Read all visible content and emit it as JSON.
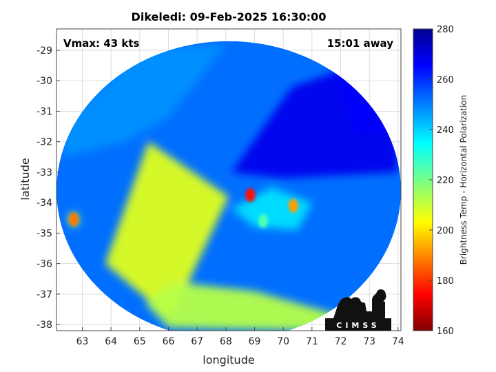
{
  "chart_data": {
    "type": "heatmap",
    "title": "Dikeledi: 09-Feb-2025 16:30:00",
    "xlabel": "longitude",
    "ylabel": "latitude",
    "xlim": [
      62.1,
      74.1
    ],
    "ylim": [
      -38.2,
      -28.3
    ],
    "xticks": [
      63,
      64,
      65,
      66,
      67,
      68,
      69,
      70,
      71,
      72,
      73,
      74
    ],
    "yticks": [
      -29,
      -30,
      -31,
      -32,
      -33,
      -34,
      -35,
      -36,
      -37,
      -38
    ],
    "xtick_labels": [
      "63",
      "64",
      "65",
      "66",
      "67",
      "68",
      "69",
      "70",
      "71",
      "72",
      "73",
      "74"
    ],
    "ytick_labels": [
      "-29",
      "-30",
      "-31",
      "-32",
      "-33",
      "-34",
      "-35",
      "-36",
      "-37",
      "-38"
    ],
    "grid": true,
    "annotations": {
      "top_left": "Vmax: 43 kts",
      "top_right": "15:01 away"
    },
    "colorbar": {
      "label": "Brightness Temp - Horizontal Polarization",
      "range": [
        160,
        280
      ],
      "ticks": [
        160,
        180,
        200,
        220,
        240,
        260,
        280
      ],
      "tick_labels": [
        "160",
        "180",
        "200",
        "220",
        "240",
        "260",
        "280"
      ],
      "colormap": "jet"
    },
    "swath_center": [
      68.1,
      -33.6
    ],
    "swath_radius_deg_lon": 6.0,
    "swath_radius_deg_lat": 4.9,
    "regions": [
      {
        "name": "background",
        "polygon": [],
        "value": 252
      },
      {
        "name": "northwest-blue",
        "polygon": [
          [
            62.3,
            -31.5
          ],
          [
            65,
            -29
          ],
          [
            68,
            -28.8
          ],
          [
            66,
            -31.2
          ],
          [
            64.5,
            -32
          ],
          [
            62.3,
            -32.5
          ]
        ],
        "value": 248
      },
      {
        "name": "warm-swath-gap",
        "polygon": [
          [
            63.8,
            -36
          ],
          [
            65.3,
            -32
          ],
          [
            68.1,
            -33.8
          ],
          [
            66.2,
            -37.6
          ],
          [
            65.8,
            -37.6
          ]
        ],
        "value": 207
      },
      {
        "name": "south-warm-band",
        "polygon": [
          [
            65.2,
            -37.3
          ],
          [
            66.2,
            -36.6
          ],
          [
            69,
            -36.9
          ],
          [
            72,
            -37.7
          ],
          [
            71,
            -38.2
          ],
          [
            66,
            -38.1
          ]
        ],
        "value": 212
      },
      {
        "name": "east-cold-swath",
        "polygon": [
          [
            68.2,
            -33
          ],
          [
            70.3,
            -30.2
          ],
          [
            72.5,
            -29.5
          ],
          [
            74,
            -32
          ],
          [
            74,
            -33
          ],
          [
            70,
            -33.2
          ]
        ],
        "value": 268
      },
      {
        "name": "northeast-deep-cold",
        "polygon": [
          [
            71.8,
            -29.5
          ],
          [
            73,
            -29.6
          ],
          [
            74,
            -31.6
          ],
          [
            72.5,
            -31.8
          ]
        ],
        "value": 266
      },
      {
        "name": "storm-arc",
        "polygon": [
          [
            68.2,
            -34.2
          ],
          [
            69.6,
            -33.5
          ],
          [
            71,
            -34
          ],
          [
            70.5,
            -34.9
          ],
          [
            69,
            -34.8
          ]
        ],
        "value": 238
      },
      {
        "name": "far-west-spot",
        "polygon": [
          [
            62.5,
            -34.4
          ],
          [
            62.8,
            -34.3
          ],
          [
            62.9,
            -34.7
          ],
          [
            62.6,
            -34.8
          ]
        ],
        "value": 215
      }
    ],
    "hotspots": [
      {
        "lon": 62.7,
        "lat": -34.55,
        "value": 188
      },
      {
        "lon": 68.85,
        "lat": -33.75,
        "value": 176
      },
      {
        "lon": 70.35,
        "lat": -34.1,
        "value": 192
      },
      {
        "lon": 69.3,
        "lat": -34.6,
        "value": 225
      }
    ],
    "logo_text": "CIMSS"
  }
}
